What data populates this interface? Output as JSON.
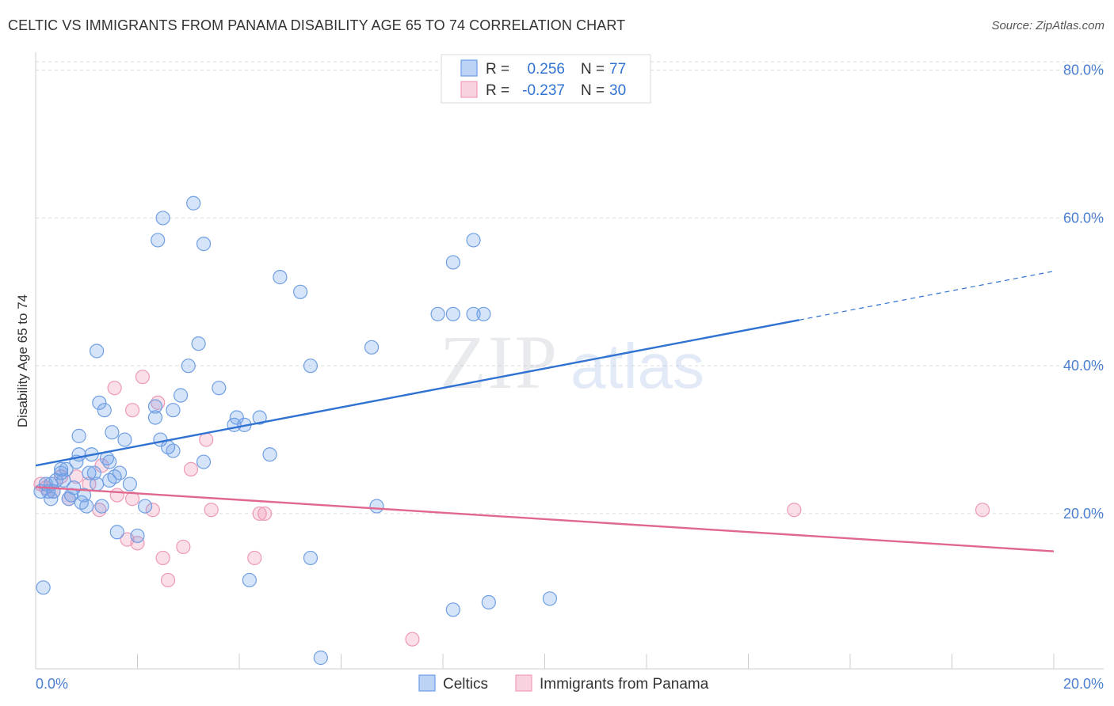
{
  "chart_data": {
    "type": "scatter",
    "title": "CELTIC VS IMMIGRANTS FROM PANAMA DISABILITY AGE 65 TO 74 CORRELATION CHART",
    "source": "Source: ZipAtlas.com",
    "xlabel": "",
    "ylabel": "Disability Age 65 to 74",
    "xlim": [
      0,
      20
    ],
    "ylim": [
      -1,
      82
    ],
    "x_tick_labels": [
      "0.0%",
      "20.0%"
    ],
    "y_ticks": [
      20,
      40,
      60,
      80
    ],
    "y_tick_labels": [
      "20.0%",
      "40.0%",
      "60.0%",
      "80.0%"
    ],
    "grid": true,
    "legend_position": "top-center",
    "watermark": "ZIPatlas",
    "legend": [
      {
        "name": "Celtics",
        "r_label": "R =",
        "r_value": "0.256",
        "n_label": "N =",
        "n_value": "77",
        "color": "#6b9de8",
        "line_color": "#2f72d2"
      },
      {
        "name": "Immigrants from Panama",
        "r_label": "R =",
        "r_value": "-0.237",
        "n_label": "N =",
        "n_value": "30",
        "color": "#f29bb8",
        "line_color": "#e0688f"
      }
    ],
    "series": [
      {
        "name": "Celtics",
        "color": "#6b9de8",
        "trend": {
          "x_start": 0,
          "y_start": 26.5,
          "x_solid_end": 15.0,
          "y_solid_end": 46.2,
          "x_end": 20.0,
          "y_end": 52.8
        },
        "x": [
          0.1,
          0.2,
          0.3,
          0.4,
          0.5,
          0.6,
          0.7,
          0.8,
          0.9,
          1.0,
          1.1,
          1.2,
          1.3,
          1.4,
          1.5,
          1.6,
          1.7,
          1.8,
          1.9,
          2.0,
          2.1,
          2.2,
          2.3,
          2.4,
          2.5,
          2.6,
          2.7,
          2.8,
          2.9,
          3.0,
          3.1,
          3.2,
          3.3,
          3.4,
          3.5,
          3.6,
          3.7,
          3.8,
          3.9,
          4.0,
          4.3,
          4.8,
          4.9,
          5.0,
          5.2,
          5.4,
          5.6,
          5.7,
          5.8,
          6.5,
          6.8,
          7.0,
          8.1,
          8.5,
          8.2,
          8.6,
          8.9,
          8.8,
          9.3,
          10.3,
          0.15,
          0.25,
          0.35,
          0.45,
          0.55,
          0.65,
          0.75,
          0.85,
          0.95,
          1.05,
          1.15,
          1.25,
          1.35,
          1.45,
          1.55,
          1.65,
          1.75
        ],
        "y": [
          23,
          22,
          24,
          23,
          25,
          27,
          29,
          21,
          30,
          33,
          31,
          35,
          42,
          28,
          26,
          27,
          25,
          31,
          24,
          22,
          17,
          18,
          30,
          33,
          34,
          29,
          34,
          57,
          60,
          29,
          36,
          40,
          44,
          62,
          27,
          56,
          37,
          32,
          32,
          33,
          11,
          33,
          28,
          52,
          50,
          14,
          0.5,
          40,
          43,
          21,
          47,
          47,
          54,
          47,
          7,
          57,
          8,
          47,
          8,
          10,
          24,
          24,
          25,
          22,
          22,
          25,
          23,
          22,
          26,
          29,
          21,
          22,
          25,
          26,
          24,
          30,
          26
        ],
        "x_plot": [
          0.1,
          0.3,
          0.3,
          0.75,
          0.5,
          0.8,
          0.85,
          0.7,
          0.85,
          1.0,
          1.35,
          1.25,
          1.2,
          1.4,
          1.05,
          1.45,
          1.55,
          1.5,
          1.85,
          2.15,
          2.0,
          1.6,
          2.45,
          2.35,
          2.35,
          2.6,
          2.7,
          2.4,
          2.5,
          2.7,
          2.85,
          3.0,
          3.2,
          3.1,
          3.3,
          3.3,
          3.6,
          3.9,
          4.1,
          3.95,
          4.2,
          4.4,
          4.6,
          4.8,
          5.2,
          5.4,
          5.6,
          5.4,
          6.6,
          6.7,
          7.9,
          8.2,
          8.2,
          8.6,
          8.2,
          8.6,
          8.9,
          8.8,
          10.1,
          0.15,
          0.2,
          0.4,
          0.6,
          0.65,
          0.35,
          0.55,
          0.25,
          0.9,
          1.15,
          1.1,
          1.3,
          0.95,
          1.45,
          1.65,
          1.2,
          1.75,
          0.5
        ],
        "y_plot": [
          23.0,
          22.0,
          24.0,
          23.5,
          25.5,
          27.0,
          28.0,
          22.5,
          30.5,
          21.0,
          34.0,
          35.0,
          42.0,
          27.5,
          25.5,
          27.0,
          25.0,
          31.0,
          24.0,
          21.0,
          17.0,
          17.5,
          30.0,
          33.0,
          34.5,
          29.0,
          34.0,
          57.0,
          60.0,
          28.5,
          36.0,
          40.0,
          43.0,
          62.0,
          27.0,
          56.5,
          37.0,
          32.0,
          32.0,
          33.0,
          11.0,
          33.0,
          28.0,
          52.0,
          50.0,
          14.0,
          0.5,
          40.0,
          42.5,
          21.0,
          47.0,
          47.0,
          54.0,
          47.0,
          7.0,
          57.0,
          8.0,
          47.0,
          8.5,
          10.0,
          24.0,
          24.5,
          26.0,
          22.0,
          23.0,
          24.5,
          23.0,
          21.5,
          25.5,
          28.0,
          21.0,
          22.5,
          24.5,
          25.5,
          24.0,
          30.0,
          26.0
        ]
      },
      {
        "name": "Immigrants from Panama",
        "color": "#f29bb8",
        "trend": {
          "x_start": 0,
          "y_start": 23.6,
          "x_end": 20.0,
          "y_end": 14.9
        },
        "x_plot": [
          0.1,
          0.2,
          0.35,
          0.5,
          0.65,
          0.8,
          1.05,
          1.25,
          1.3,
          1.55,
          1.6,
          1.8,
          1.9,
          1.9,
          2.0,
          2.1,
          2.3,
          2.4,
          2.5,
          2.6,
          2.9,
          3.05,
          3.35,
          3.45,
          4.3,
          4.4,
          4.5,
          7.4,
          14.9,
          18.6
        ],
        "y_plot": [
          24.0,
          23.5,
          23.0,
          25.0,
          22.0,
          25.0,
          24.0,
          20.5,
          26.5,
          37.0,
          22.5,
          16.5,
          22.0,
          34.0,
          16.0,
          38.5,
          20.5,
          35.0,
          14.0,
          11.0,
          15.5,
          26.0,
          30.0,
          20.5,
          14.0,
          20.0,
          20.0,
          3.0,
          20.5,
          20.5
        ]
      }
    ]
  }
}
